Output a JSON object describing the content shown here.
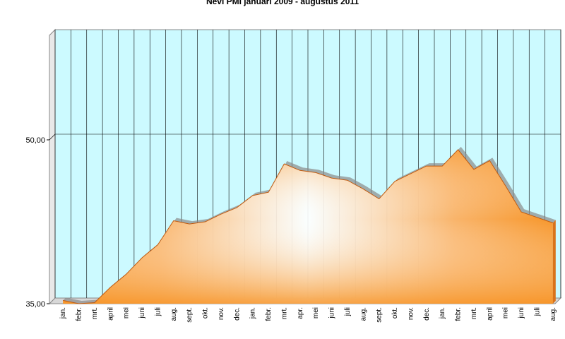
{
  "chart_data": {
    "type": "area",
    "title": "Nevi PMI januari 2009 - augustus 2011",
    "xlabel": "",
    "ylabel": "",
    "ylim": [
      35,
      50
    ],
    "y_ticks": [
      "35,00",
      "50,00"
    ],
    "categories": [
      "jan.",
      "febr.",
      "mrt.",
      "april",
      "mei",
      "juni",
      "juli",
      "aug.",
      "sept.",
      "okt.",
      "nov.",
      "dec.",
      "jan.",
      "febr.",
      "mrt.",
      "apr.",
      "mei",
      "juni",
      "juli",
      "aug.",
      "sept.",
      "okt.",
      "nov.",
      "dec.",
      "jan.",
      "febr.",
      "mrt.",
      "april",
      "mei",
      "juni",
      "juli",
      "aug."
    ],
    "series": [
      {
        "values": [
          35.3,
          35.0,
          35.1,
          36.5,
          37.7,
          39.2,
          40.4,
          42.6,
          42.3,
          42.5,
          43.2,
          43.8,
          44.9,
          45.2,
          47.8,
          47.2,
          47.0,
          46.5,
          46.3,
          45.5,
          44.6,
          46.2,
          46.9,
          47.6,
          47.6,
          49.1,
          47.3,
          48.1,
          45.8,
          43.4,
          42.9,
          42.4
        ]
      }
    ],
    "grid": true,
    "grid_direction": "vertical",
    "colors": {
      "fill": "#f7962a",
      "fill_light": "#ffe7cc",
      "plot_background": "#ccfaff",
      "grid": "#000000"
    }
  }
}
